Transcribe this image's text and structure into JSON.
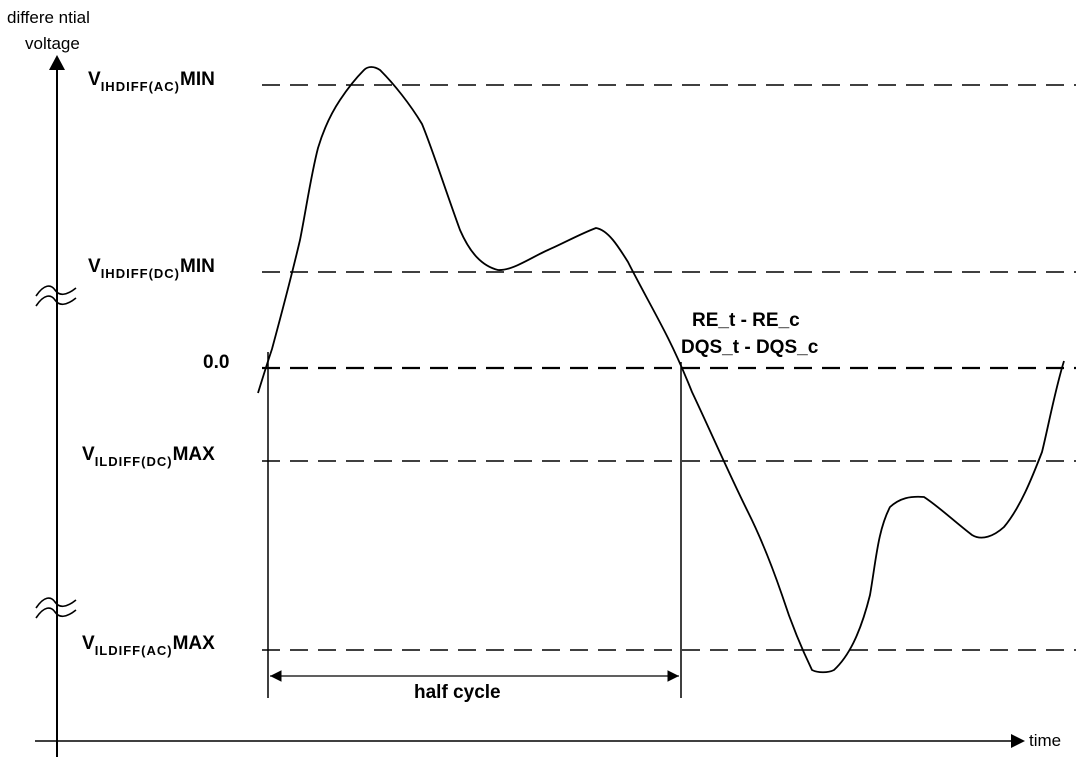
{
  "axes": {
    "y_label_line1": "differe ntial",
    "y_label_line2": "voltage",
    "x_label": "time"
  },
  "levels": {
    "vih_ac": {
      "prefix": "V",
      "sub": "IHDIFF(AC)",
      "suffix": "MIN"
    },
    "vih_dc": {
      "prefix": "V",
      "sub": "IHDIFF(DC)",
      "suffix": "MIN"
    },
    "zero": {
      "text": "0.0"
    },
    "vil_dc": {
      "prefix": "V",
      "sub": "ILDIFF(DC)",
      "suffix": "MAX"
    },
    "vil_ac": {
      "prefix": "V",
      "sub": "ILDIFF(AC)",
      "suffix": "MAX"
    }
  },
  "signal": {
    "line1": "RE_t  - RE_c",
    "line2": "DQS_t - DQS_c"
  },
  "annotation": {
    "half_cycle": "half cycle"
  },
  "colors": {
    "ink": "#000000",
    "background": "#ffffff"
  }
}
